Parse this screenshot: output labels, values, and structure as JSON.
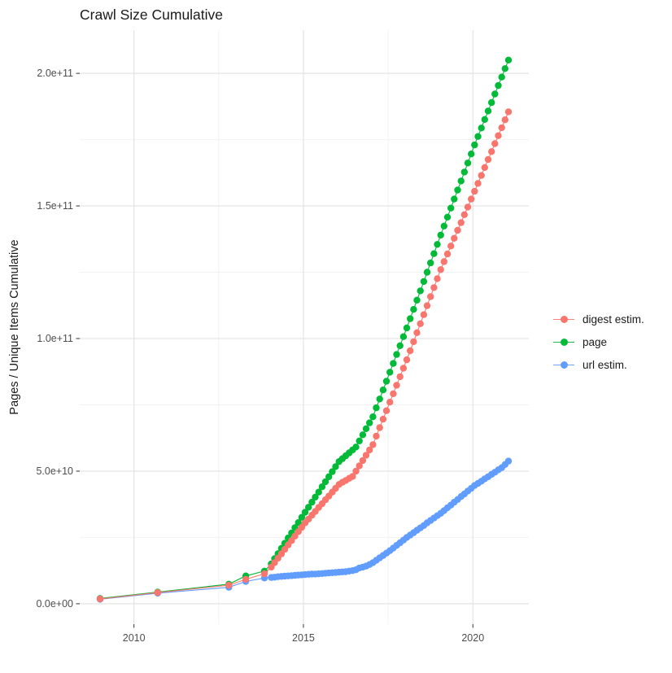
{
  "title": "Crawl Size Cumulative",
  "colors": {
    "grid_major": "#e3e3e3",
    "grid_minor": "#f2f2f2",
    "tick_mark": "#333333",
    "tick_text": "#4d4d4d",
    "text": "#1a1a1a",
    "background": "#ffffff"
  },
  "chart_data": {
    "type": "scatter",
    "title": "Crawl Size Cumulative",
    "xlabel": "",
    "ylabel": "Pages / Unique Items Cumulative",
    "legend_position": "right",
    "grid": true,
    "value_unit_note": "point y values are in units of 1e9 (billions); axis shows scientific notation",
    "xlim": [
      2008.4,
      2021.65
    ],
    "ylim_e9": [
      -7.7,
      216.3
    ],
    "x_ticks": [
      {
        "value": 2010,
        "label": "2010"
      },
      {
        "value": 2015,
        "label": "2015"
      },
      {
        "value": 2020,
        "label": "2020"
      }
    ],
    "x_minor_ticks": [
      2012.5,
      2017.5
    ],
    "y_ticks": [
      {
        "value": 0,
        "label": "0.0e+00"
      },
      {
        "value": 50,
        "label": "5.0e+10"
      },
      {
        "value": 100,
        "label": "1.0e+11"
      },
      {
        "value": 150,
        "label": "1.5e+11"
      },
      {
        "value": 200,
        "label": "2.0e+11"
      }
    ],
    "y_minor_ticks": [
      25,
      75,
      125,
      175
    ],
    "series": [
      {
        "name": "digest estim.",
        "color": "#F8766D",
        "points": [
          [
            2009.0,
            1.8
          ],
          [
            2010.7,
            4.2
          ],
          [
            2012.8,
            7.0
          ],
          [
            2013.3,
            9.2
          ],
          [
            2013.85,
            11.3
          ],
          [
            2014.05,
            13.8
          ],
          [
            2014.15,
            15.5
          ],
          [
            2014.25,
            17.2
          ],
          [
            2014.35,
            18.8
          ],
          [
            2014.45,
            20.5
          ],
          [
            2014.55,
            22.2
          ],
          [
            2014.65,
            23.8
          ],
          [
            2014.75,
            25.5
          ],
          [
            2014.85,
            27.2
          ],
          [
            2014.95,
            28.8
          ],
          [
            2015.05,
            30.5
          ],
          [
            2015.15,
            31.9
          ],
          [
            2015.25,
            33.4
          ],
          [
            2015.35,
            34.8
          ],
          [
            2015.45,
            36.3
          ],
          [
            2015.55,
            37.7
          ],
          [
            2015.65,
            39.2
          ],
          [
            2015.75,
            40.6
          ],
          [
            2015.85,
            42.1
          ],
          [
            2015.95,
            43.5
          ],
          [
            2016.05,
            45.0
          ],
          [
            2016.15,
            45.8
          ],
          [
            2016.25,
            46.5
          ],
          [
            2016.35,
            47.3
          ],
          [
            2016.45,
            48.0
          ],
          [
            2016.55,
            50.0
          ],
          [
            2016.65,
            52.0
          ],
          [
            2016.75,
            54.0
          ],
          [
            2016.85,
            56.0
          ],
          [
            2016.95,
            58.0
          ],
          [
            2017.05,
            60.0
          ],
          [
            2017.15,
            63.2
          ],
          [
            2017.25,
            66.4
          ],
          [
            2017.35,
            69.6
          ],
          [
            2017.45,
            72.8
          ],
          [
            2017.55,
            76.0
          ],
          [
            2017.65,
            79.2
          ],
          [
            2017.75,
            82.4
          ],
          [
            2017.85,
            85.6
          ],
          [
            2017.95,
            88.8
          ],
          [
            2018.05,
            92.0
          ],
          [
            2018.15,
            95.4
          ],
          [
            2018.25,
            98.8
          ],
          [
            2018.35,
            102.2
          ],
          [
            2018.45,
            105.6
          ],
          [
            2018.55,
            109.0
          ],
          [
            2018.65,
            112.4
          ],
          [
            2018.75,
            115.8
          ],
          [
            2018.85,
            119.2
          ],
          [
            2018.95,
            122.6
          ],
          [
            2019.05,
            126.0
          ],
          [
            2019.15,
            129.0
          ],
          [
            2019.25,
            131.9
          ],
          [
            2019.35,
            134.9
          ],
          [
            2019.45,
            137.8
          ],
          [
            2019.55,
            140.8
          ],
          [
            2019.65,
            143.7
          ],
          [
            2019.75,
            146.7
          ],
          [
            2019.85,
            149.6
          ],
          [
            2019.95,
            152.6
          ],
          [
            2020.05,
            155.5
          ],
          [
            2020.15,
            158.5
          ],
          [
            2020.25,
            161.5
          ],
          [
            2020.35,
            164.5
          ],
          [
            2020.45,
            167.5
          ],
          [
            2020.55,
            170.5
          ],
          [
            2020.65,
            173.5
          ],
          [
            2020.75,
            176.5
          ],
          [
            2020.85,
            179.5
          ],
          [
            2020.95,
            182.5
          ],
          [
            2021.05,
            185.5
          ]
        ]
      },
      {
        "name": "page",
        "color": "#00BA38",
        "points": [
          [
            2009.0,
            2.0
          ],
          [
            2010.7,
            4.4
          ],
          [
            2012.8,
            7.4
          ],
          [
            2013.3,
            10.5
          ],
          [
            2013.85,
            12.3
          ],
          [
            2014.05,
            15.0
          ],
          [
            2014.15,
            17.0
          ],
          [
            2014.25,
            18.9
          ],
          [
            2014.35,
            20.9
          ],
          [
            2014.45,
            22.8
          ],
          [
            2014.55,
            24.8
          ],
          [
            2014.65,
            26.7
          ],
          [
            2014.75,
            28.7
          ],
          [
            2014.85,
            30.6
          ],
          [
            2014.95,
            32.6
          ],
          [
            2015.05,
            34.5
          ],
          [
            2015.15,
            36.4
          ],
          [
            2015.25,
            38.3
          ],
          [
            2015.35,
            40.2
          ],
          [
            2015.45,
            42.1
          ],
          [
            2015.55,
            44.1
          ],
          [
            2015.65,
            46.0
          ],
          [
            2015.75,
            47.9
          ],
          [
            2015.85,
            49.8
          ],
          [
            2015.95,
            51.7
          ],
          [
            2016.05,
            53.6
          ],
          [
            2016.15,
            54.7
          ],
          [
            2016.25,
            55.8
          ],
          [
            2016.35,
            56.9
          ],
          [
            2016.45,
            58.0
          ],
          [
            2016.55,
            59.1
          ],
          [
            2016.65,
            61.4
          ],
          [
            2016.75,
            63.7
          ],
          [
            2016.85,
            66.0
          ],
          [
            2016.95,
            68.2
          ],
          [
            2017.05,
            70.5
          ],
          [
            2017.15,
            73.9
          ],
          [
            2017.25,
            77.2
          ],
          [
            2017.35,
            80.6
          ],
          [
            2017.45,
            83.9
          ],
          [
            2017.55,
            87.3
          ],
          [
            2017.65,
            90.6
          ],
          [
            2017.75,
            94.0
          ],
          [
            2017.85,
            97.3
          ],
          [
            2017.95,
            100.7
          ],
          [
            2018.05,
            104.0
          ],
          [
            2018.15,
            107.5
          ],
          [
            2018.25,
            111.0
          ],
          [
            2018.35,
            114.5
          ],
          [
            2018.45,
            118.0
          ],
          [
            2018.55,
            121.5
          ],
          [
            2018.65,
            125.0
          ],
          [
            2018.75,
            128.5
          ],
          [
            2018.85,
            132.0
          ],
          [
            2018.95,
            135.5
          ],
          [
            2019.05,
            139.0
          ],
          [
            2019.15,
            142.4
          ],
          [
            2019.25,
            145.8
          ],
          [
            2019.35,
            149.2
          ],
          [
            2019.45,
            152.6
          ],
          [
            2019.55,
            156.0
          ],
          [
            2019.65,
            159.4
          ],
          [
            2019.75,
            162.8
          ],
          [
            2019.85,
            166.2
          ],
          [
            2019.95,
            169.6
          ],
          [
            2020.05,
            173.0
          ],
          [
            2020.15,
            176.2
          ],
          [
            2020.25,
            179.4
          ],
          [
            2020.35,
            182.6
          ],
          [
            2020.45,
            185.8
          ],
          [
            2020.55,
            189.0
          ],
          [
            2020.65,
            192.2
          ],
          [
            2020.75,
            195.4
          ],
          [
            2020.85,
            198.6
          ],
          [
            2020.95,
            201.8
          ],
          [
            2021.05,
            205.0
          ]
        ]
      },
      {
        "name": "url estim.",
        "color": "#619CFF",
        "points": [
          [
            2009.0,
            1.7
          ],
          [
            2010.7,
            4.0
          ],
          [
            2012.8,
            6.2
          ],
          [
            2013.3,
            8.4
          ],
          [
            2013.85,
            9.7
          ],
          [
            2014.05,
            9.9
          ],
          [
            2014.15,
            10.0
          ],
          [
            2014.25,
            10.2
          ],
          [
            2014.35,
            10.3
          ],
          [
            2014.45,
            10.4
          ],
          [
            2014.55,
            10.5
          ],
          [
            2014.65,
            10.6
          ],
          [
            2014.75,
            10.7
          ],
          [
            2014.85,
            10.8
          ],
          [
            2014.95,
            10.9
          ],
          [
            2015.05,
            11.0
          ],
          [
            2015.15,
            11.1
          ],
          [
            2015.25,
            11.2
          ],
          [
            2015.35,
            11.2
          ],
          [
            2015.45,
            11.3
          ],
          [
            2015.55,
            11.4
          ],
          [
            2015.65,
            11.5
          ],
          [
            2015.75,
            11.6
          ],
          [
            2015.85,
            11.7
          ],
          [
            2015.95,
            11.8
          ],
          [
            2016.05,
            11.9
          ],
          [
            2016.15,
            12.0
          ],
          [
            2016.25,
            12.1
          ],
          [
            2016.35,
            12.3
          ],
          [
            2016.45,
            12.5
          ],
          [
            2016.55,
            12.8
          ],
          [
            2016.65,
            13.5
          ],
          [
            2016.75,
            13.8
          ],
          [
            2016.85,
            14.2
          ],
          [
            2016.95,
            14.8
          ],
          [
            2017.05,
            15.5
          ],
          [
            2017.15,
            16.4
          ],
          [
            2017.25,
            17.3
          ],
          [
            2017.35,
            18.2
          ],
          [
            2017.45,
            19.1
          ],
          [
            2017.55,
            20.0
          ],
          [
            2017.65,
            21.0
          ],
          [
            2017.75,
            22.0
          ],
          [
            2017.85,
            23.0
          ],
          [
            2017.95,
            24.0
          ],
          [
            2018.05,
            25.0
          ],
          [
            2018.15,
            25.9
          ],
          [
            2018.25,
            26.8
          ],
          [
            2018.35,
            27.7
          ],
          [
            2018.45,
            28.6
          ],
          [
            2018.55,
            29.5
          ],
          [
            2018.65,
            30.5
          ],
          [
            2018.75,
            31.4
          ],
          [
            2018.85,
            32.3
          ],
          [
            2018.95,
            33.2
          ],
          [
            2019.05,
            34.1
          ],
          [
            2019.15,
            35.1
          ],
          [
            2019.25,
            36.2
          ],
          [
            2019.35,
            37.2
          ],
          [
            2019.45,
            38.3
          ],
          [
            2019.55,
            39.3
          ],
          [
            2019.65,
            40.4
          ],
          [
            2019.75,
            41.4
          ],
          [
            2019.85,
            42.5
          ],
          [
            2019.95,
            43.5
          ],
          [
            2020.05,
            44.6
          ],
          [
            2020.15,
            45.4
          ],
          [
            2020.25,
            46.2
          ],
          [
            2020.35,
            47.1
          ],
          [
            2020.45,
            47.9
          ],
          [
            2020.55,
            48.8
          ],
          [
            2020.65,
            49.6
          ],
          [
            2020.75,
            50.5
          ],
          [
            2020.85,
            51.3
          ],
          [
            2020.95,
            52.5
          ],
          [
            2021.05,
            53.8
          ]
        ]
      }
    ]
  }
}
